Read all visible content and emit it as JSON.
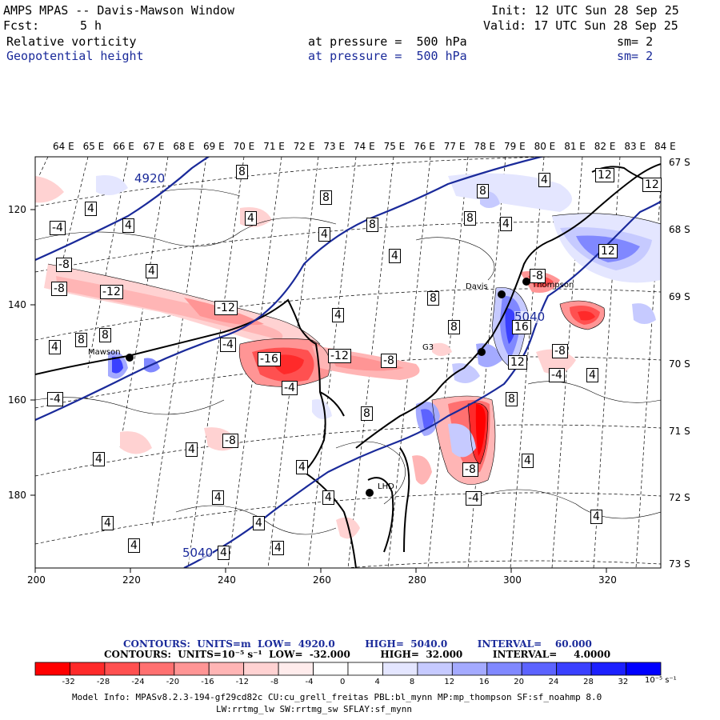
{
  "header": {
    "title": "AMPS MPAS -- Davis-Mawson Window",
    "forecast_label": "Fcst:",
    "forecast_value": "5 h",
    "init": "Init: 12 UTC Sun 28 Sep 25",
    "valid": "Valid: 17 UTC Sun 28 Sep 25",
    "field1": {
      "name": "Relative vorticity",
      "level": "at pressure =  500 hPa",
      "smooth": "sm= 2"
    },
    "field2": {
      "name": "Geopotential height",
      "level": "at pressure =  500 hPa",
      "smooth": "sm= 2"
    }
  },
  "map": {
    "lon_labels": [
      "64 E",
      "65 E",
      "66 E",
      "67 E",
      "68 E",
      "69 E",
      "70 E",
      "71 E",
      "72 E",
      "73 E",
      "74 E",
      "75 E",
      "76 E",
      "77 E",
      "78 E",
      "79 E",
      "80 E",
      "81 E",
      "82 E",
      "83 E",
      "84 E"
    ],
    "lat_labels": [
      "67 S",
      "68 S",
      "69 S",
      "70 S",
      "71 S",
      "72 S",
      "73 S"
    ],
    "x_ticks": [
      "200",
      "220",
      "240",
      "260",
      "280",
      "300",
      "320"
    ],
    "y_ticks": [
      "120",
      "140",
      "160",
      "180"
    ],
    "stations": [
      {
        "name": "Mawson"
      },
      {
        "name": "Davis"
      },
      {
        "name": "Thompson"
      },
      {
        "name": "G3"
      },
      {
        "name": "LHD"
      }
    ],
    "height_contour_labels": [
      "4920",
      "5040",
      "5040"
    ],
    "vorticity_labels": [
      "-4",
      "-8",
      "-12",
      "-16",
      "4",
      "8",
      "12",
      "16"
    ]
  },
  "contour_info": {
    "line1": "CONTOURS:  UNITS=m  LOW=  4920.0         HIGH=  5040.0         INTERVAL=    60.000",
    "line2": "CONTOURS:  UNITS=10⁻⁵ s⁻¹  LOW=  -32.000         HIGH=  32.000         INTERVAL=     4.0000"
  },
  "colorbar": {
    "ticks": [
      "-32",
      "-28",
      "-24",
      "-20",
      "-16",
      "-12",
      "-8",
      "-4",
      "0",
      "4",
      "8",
      "12",
      "16",
      "20",
      "24",
      "28",
      "32"
    ],
    "unit": "10⁻⁵ s⁻¹",
    "colors": [
      "#ff0000",
      "#ff2a2a",
      "#ff5050",
      "#ff7070",
      "#ff9595",
      "#ffb5b5",
      "#ffd2d2",
      "#ffecec",
      "#ffffff",
      "#ffffff",
      "#e4e6ff",
      "#c6caff",
      "#a4aaff",
      "#8088ff",
      "#5c63ff",
      "#3a40ff",
      "#1c20ff",
      "#0000ff"
    ]
  },
  "model_info": {
    "line1": "Model Info: MPASv8.2.3-194-gf29cd82c CU:cu_grell_freitas PBL:bl_mynn MP:mp_thompson SF:sf_noahmp 8.0",
    "line2": "LW:rrtmg_lw SW:rrtmg_sw SFLAY:sf_mynn"
  }
}
